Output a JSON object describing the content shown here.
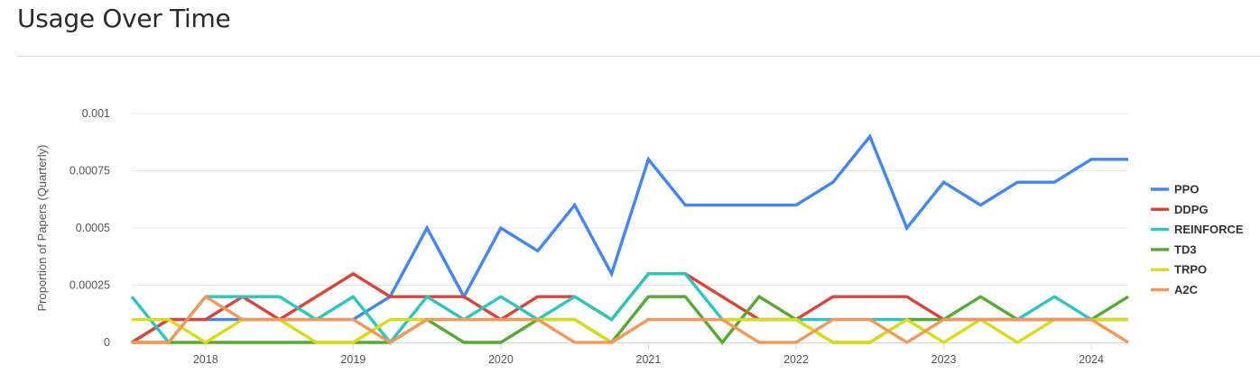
{
  "page": {
    "title": "Usage Over Time"
  },
  "chart_data": {
    "type": "line",
    "title": "",
    "xlabel": "",
    "ylabel": "Proportion of Papers (Quarterly)",
    "x": [
      2017.5,
      2017.75,
      2018.0,
      2018.25,
      2018.5,
      2018.75,
      2019.0,
      2019.25,
      2019.5,
      2019.75,
      2020.0,
      2020.25,
      2020.5,
      2020.75,
      2021.0,
      2021.25,
      2021.5,
      2021.75,
      2022.0,
      2022.25,
      2022.5,
      2022.75,
      2023.0,
      2023.25,
      2023.5,
      2023.75,
      2024.0,
      2024.25
    ],
    "xlim": [
      2017.5,
      2024.25
    ],
    "x_ticks": [
      "2018",
      "2019",
      "2020",
      "2021",
      "2022",
      "2023",
      "2024"
    ],
    "ylim": [
      0,
      0.001
    ],
    "y_ticks": [
      "0",
      "0.00025",
      "0.0005",
      "0.00075",
      "0.001"
    ],
    "grid": true,
    "legend_position": "right",
    "series": [
      {
        "name": "PPO",
        "color": "#4285f4",
        "values": [
          0,
          0.0001,
          0.0001,
          0.0001,
          0.0001,
          0.0001,
          0.0001,
          0.0002,
          0.0005,
          0.0002,
          0.0005,
          0.0004,
          0.0006,
          0.0003,
          0.0008,
          0.0006,
          0.0006,
          0.0006,
          0.0006,
          0.0007,
          0.0009,
          0.0005,
          0.0007,
          0.0006,
          0.0007,
          0.0007,
          0.0008,
          0.0008
        ]
      },
      {
        "name": "DDPG",
        "color": "#db4437",
        "values": [
          0,
          0.0001,
          0.0001,
          0.0002,
          0.0001,
          0.0002,
          0.0003,
          0.0002,
          0.0002,
          0.0002,
          0.0001,
          0.0002,
          0.0002,
          0.0001,
          0.0003,
          0.0003,
          0.0002,
          0.0001,
          0.0001,
          0.0002,
          0.0002,
          0.0002,
          0.0001,
          0.0001,
          0.0001,
          0.0001,
          0.0001,
          0.0001
        ]
      },
      {
        "name": "REINFORCE",
        "color": "#2bc6c0",
        "values": [
          0.0002,
          0,
          0.0002,
          0.0002,
          0.0002,
          0.0001,
          0.0002,
          0,
          0.0002,
          0.0001,
          0.0002,
          0.0001,
          0.0002,
          0.0001,
          0.0003,
          0.0003,
          0.0001,
          0.0001,
          0.0001,
          0.0001,
          0.0001,
          0.0001,
          0.0001,
          0.0001,
          0.0001,
          0.0002,
          0.0001,
          0.0001
        ]
      },
      {
        "name": "TD3",
        "color": "#55aa33",
        "values": [
          0,
          0,
          0,
          0,
          0,
          0,
          0,
          0,
          0.0001,
          0,
          0,
          0.0001,
          0.0001,
          0,
          0.0002,
          0.0002,
          0,
          0.0002,
          0.0001,
          0,
          0,
          0.0001,
          0.0001,
          0.0002,
          0.0001,
          0.0001,
          0.0001,
          0.0002
        ]
      },
      {
        "name": "TRPO",
        "color": "#dbdb17",
        "values": [
          0.0001,
          0.0001,
          0,
          0.0001,
          0.0001,
          0,
          0,
          0.0001,
          0.0001,
          0.0001,
          0.0001,
          0.0001,
          0.0001,
          0,
          0.0001,
          0.0001,
          0.0001,
          0.0001,
          0.0001,
          0,
          0,
          0.0001,
          0,
          0.0001,
          0,
          0.0001,
          0.0001,
          0.0001
        ]
      },
      {
        "name": "A2C",
        "color": "#f4985a",
        "values": [
          0,
          0,
          0.0002,
          0.0001,
          0.0001,
          0.0001,
          0.0001,
          0,
          0.0001,
          0.0001,
          0.0001,
          0.0001,
          0,
          0,
          0.0001,
          0.0001,
          0.0001,
          0,
          0,
          0.0001,
          0.0001,
          0,
          0.0001,
          0.0001,
          0.0001,
          0.0001,
          0.0001,
          0
        ]
      }
    ]
  }
}
